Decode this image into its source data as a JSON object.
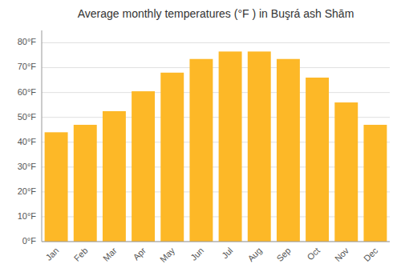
{
  "chart_data": {
    "type": "bar",
    "title": "Average monthly temperatures (°F ) in Buşrá ash Shām",
    "categories": [
      "Jan",
      "Feb",
      "Mar",
      "Apr",
      "May",
      "Jun",
      "Jul",
      "Aug",
      "Sep",
      "Oct",
      "Nov",
      "Dec"
    ],
    "values": [
      44,
      47,
      52.5,
      60.5,
      68,
      73.5,
      76.5,
      76.5,
      73.5,
      66,
      56,
      47
    ],
    "color": "#FDB827",
    "ylim": [
      0,
      85
    ],
    "yticks": [
      {
        "value": 0,
        "label": "0°F"
      },
      {
        "value": 10,
        "label": "10°F"
      },
      {
        "value": 20,
        "label": "20°F"
      },
      {
        "value": 30,
        "label": "30°F"
      },
      {
        "value": 40,
        "label": "40°F"
      },
      {
        "value": 50,
        "label": "50°F"
      },
      {
        "value": 60,
        "label": "60°F"
      },
      {
        "value": 70,
        "label": "70°F"
      },
      {
        "value": 80,
        "label": "80°F"
      }
    ],
    "grid": true
  }
}
